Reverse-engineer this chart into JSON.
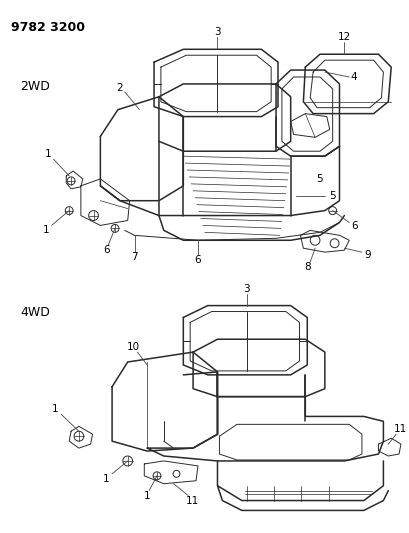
{
  "bg_color": "#ffffff",
  "line_color": "#2a2a2a",
  "label_color": "#000000",
  "header": "9782 3200",
  "section1": "2WD",
  "section2": "4WD",
  "fig_width": 4.1,
  "fig_height": 5.33,
  "dpi": 100
}
